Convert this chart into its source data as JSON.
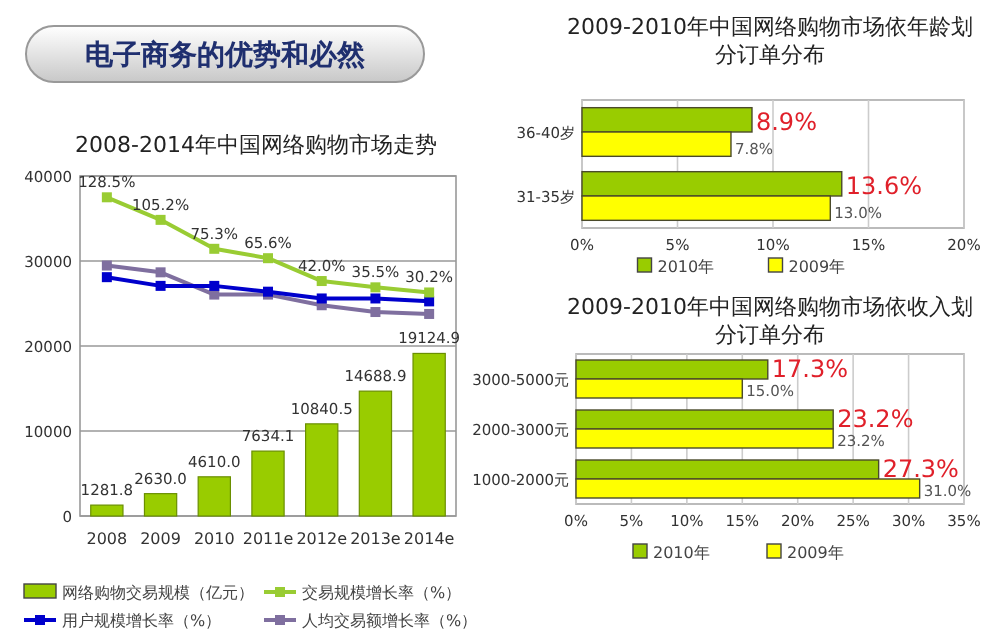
{
  "chart_data": [
    {
      "type": "other",
      "title": "电子商务的优势和必然"
    },
    {
      "type": "bar",
      "title": "2008-2014年中国网络购物市场走势",
      "categories": [
        "2008",
        "2009",
        "2010",
        "2011e",
        "2012e",
        "2013e",
        "2014e"
      ],
      "ylim": [
        0,
        40000
      ],
      "yticks": [
        0,
        10000,
        20000,
        30000,
        40000
      ],
      "y2lim": [
        -200.7,
        150.5
      ],
      "grid": "y",
      "legend": "bottom",
      "marker": "square",
      "series": [
        {
          "name": "网络购物交易规模（亿元）",
          "type": "bar",
          "color": "#99cc00",
          "values": [
            1281.8,
            2630.0,
            4610.0,
            7634.1,
            10840.5,
            14688.9,
            19124.9
          ],
          "value_labels": [
            "1281.8",
            "2630.0",
            "4610.0",
            "7634.1",
            "10840.5",
            "14688.9",
            "19124.9"
          ]
        },
        {
          "name": "交易规模增长率（%）",
          "type": "line",
          "axis": "y2",
          "color": "#99cc33",
          "values": [
            128.5,
            105.2,
            75.3,
            65.6,
            42.0,
            35.5,
            30.2
          ],
          "value_labels": [
            "128.5%",
            "105.2%",
            "75.3%",
            "65.6%",
            "42.0%",
            "35.5%",
            "30.2%"
          ]
        },
        {
          "name": "用户规模增长率（%）",
          "type": "line",
          "axis": "y2",
          "color": "#0000cc",
          "values": [
            46,
            37,
            37,
            31,
            24,
            24,
            21
          ]
        },
        {
          "name": "人均交易额增长率（%）",
          "type": "line",
          "axis": "y2",
          "color": "#7f6f9f",
          "values": [
            58,
            51,
            28,
            28,
            17,
            10,
            8
          ]
        }
      ]
    },
    {
      "type": "bar",
      "orientation": "horizontal",
      "title": "2009-2010年中国网络购物市场依年龄划分订单分布",
      "categories": [
        "36-40岁",
        "31-35岁"
      ],
      "xlim": [
        0,
        20
      ],
      "xticks": [
        {
          "value": 0,
          "label": "0%"
        },
        {
          "value": 5,
          "label": "5%"
        },
        {
          "value": 10,
          "label": "10%"
        },
        {
          "value": 15,
          "label": "15%"
        },
        {
          "value": 20,
          "label": "20%"
        }
      ],
      "grid": "x",
      "legend": "bottom",
      "series": [
        {
          "name": "2010年",
          "color": "#99cc00",
          "values": [
            8.9,
            13.6
          ],
          "value_labels": [
            "8.9%",
            "13.6%"
          ]
        },
        {
          "name": "2009年",
          "color": "#ffff00",
          "values": [
            7.8,
            13.0
          ],
          "value_labels": [
            "7.8%",
            "13.0%"
          ]
        }
      ]
    },
    {
      "type": "bar",
      "orientation": "horizontal",
      "title": "2009-2010年中国网络购物市场依收入划分订单分布",
      "categories": [
        "3000-5000元",
        "2000-3000元",
        "1000-2000元"
      ],
      "xlim": [
        0,
        35
      ],
      "xticks": [
        {
          "value": 0,
          "label": "0%"
        },
        {
          "value": 5,
          "label": "5%"
        },
        {
          "value": 10,
          "label": "10%"
        },
        {
          "value": 15,
          "label": "15%"
        },
        {
          "value": 20,
          "label": "20%"
        },
        {
          "value": 25,
          "label": "25%"
        },
        {
          "value": 30,
          "label": "30%"
        },
        {
          "value": 35,
          "label": "35%"
        }
      ],
      "grid": "x",
      "legend": "bottom",
      "series": [
        {
          "name": "2010年",
          "color": "#99cc00",
          "values": [
            17.3,
            23.2,
            27.3
          ],
          "value_labels": [
            "17.3%",
            "23.2%",
            "27.3%"
          ]
        },
        {
          "name": "2009年",
          "color": "#ffff00",
          "values": [
            15.0,
            23.2,
            31.0
          ],
          "value_labels": [
            "15.0%",
            "23.2%",
            "31.0%"
          ]
        }
      ]
    }
  ]
}
